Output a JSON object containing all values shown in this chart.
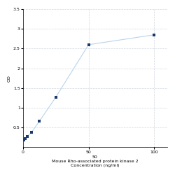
{
  "x": [
    0.78,
    1.56,
    3.125,
    6.25,
    12.5,
    25,
    50,
    100
  ],
  "y": [
    0.18,
    0.22,
    0.27,
    0.37,
    0.66,
    1.27,
    2.6,
    2.85
  ],
  "line_color": "#b8d4ea",
  "marker_color": "#1a3a6b",
  "marker_style": "s",
  "marker_size": 3.5,
  "xlabel_line1": "50",
  "xlabel_line2": "Mouse Rho-associated protein kinase 2",
  "xlabel_line3": "Concentration (ng/ml)",
  "ylabel": "OD",
  "xlim": [
    0,
    110
  ],
  "ylim": [
    0,
    3.5
  ],
  "yticks": [
    0.5,
    1.0,
    1.5,
    2.0,
    2.5,
    3.0,
    3.5
  ],
  "ytick_labels": [
    "0.5",
    "1",
    "1.5",
    "2",
    "2.5",
    "3",
    "3.5"
  ],
  "xticks": [
    0,
    50,
    100
  ],
  "xtick_labels": [
    "0",
    "50",
    "100"
  ],
  "grid_color": "#d0d8e0",
  "grid_style": "--",
  "background_color": "#ffffff",
  "label_fontsize": 4.5,
  "tick_fontsize": 4.5,
  "line_width": 0.8
}
